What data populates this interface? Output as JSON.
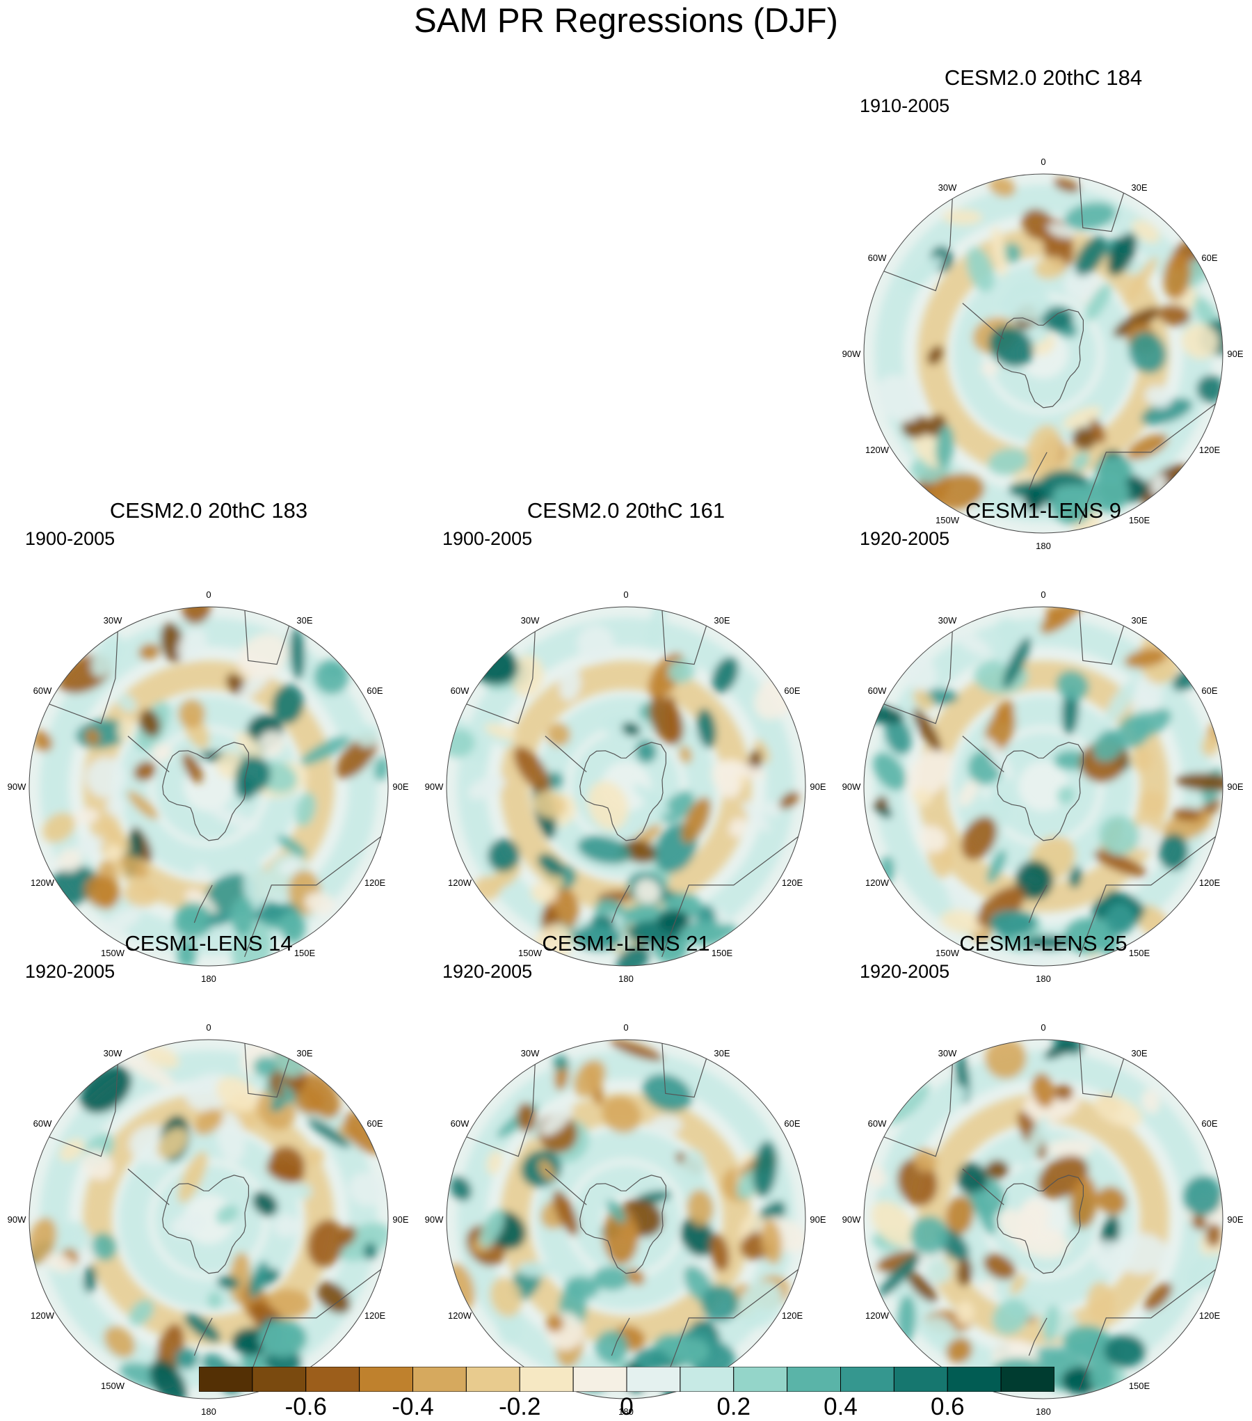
{
  "title": "SAM PR Regressions (DJF)",
  "panels": [
    {
      "title": "CESM2.0 20thC 184",
      "period": "1910-2005",
      "x": 0,
      "y": 0
    },
    {
      "title": "CESM2.0 20thC 183",
      "period": "1900-2005",
      "x": 0,
      "y": 0
    },
    {
      "title": "CESM2.0 20thC 161",
      "period": "1900-2005",
      "x": 0,
      "y": 0
    },
    {
      "title": "CESM1-LENS 9",
      "period": "1920-2005",
      "x": 0,
      "y": 0
    },
    {
      "title": "CESM1-LENS 14",
      "period": "1920-2005",
      "x": 0,
      "y": 0
    },
    {
      "title": "CESM1-LENS 21",
      "period": "1920-2005",
      "x": 0,
      "y": 0
    },
    {
      "title": "CESM1-LENS 25",
      "period": "1920-2005",
      "x": 0,
      "y": 0
    }
  ],
  "longitude_labels": [
    "0",
    "30E",
    "60E",
    "90E",
    "120E",
    "150E",
    "180",
    "150W",
    "120W",
    "90W",
    "60W",
    "30W"
  ],
  "colorbar": {
    "levels": [
      -0.7,
      -0.6,
      -0.5,
      -0.4,
      -0.3,
      -0.2,
      -0.1,
      0,
      0.1,
      0.2,
      0.3,
      0.4,
      0.5,
      0.6,
      0.7
    ],
    "colors": [
      "#543005",
      "#7a4a0f",
      "#9c5e1b",
      "#bf812d",
      "#d6a95e",
      "#e8cb8e",
      "#f6e8c3",
      "#f5f0e4",
      "#e4f1ef",
      "#c7eae5",
      "#94d5c9",
      "#5ab4a8",
      "#35978f",
      "#16776f",
      "#015c53",
      "#003c30"
    ],
    "tick_labels": [
      "-0.6",
      "-0.4",
      "-0.2",
      "0",
      "0.2",
      "0.4",
      "0.6"
    ],
    "tick_values": [
      -0.6,
      -0.4,
      -0.2,
      0,
      0.2,
      0.4,
      0.6
    ]
  }
}
